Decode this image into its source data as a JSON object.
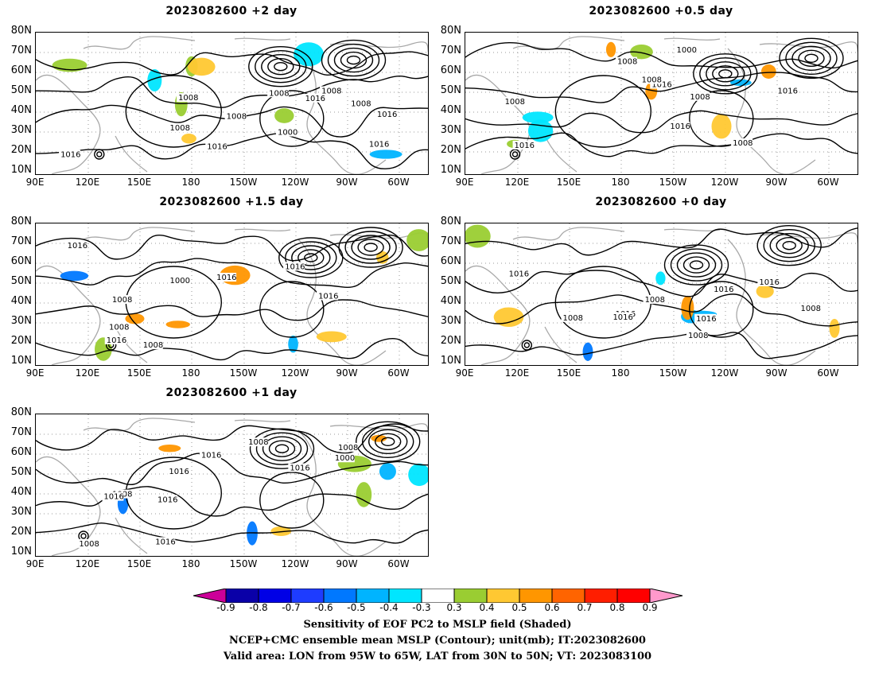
{
  "panels": [
    {
      "id": "p2",
      "title": "2023082600 +2 day",
      "labels": [
        "1016",
        "1008",
        "1016",
        "1008",
        "1000",
        "1008",
        "1016",
        "1008",
        "1016",
        "1008",
        "1008",
        "1016"
      ]
    },
    {
      "id": "p05",
      "title": "2023082600 +0.5 day",
      "labels": [
        "1016",
        "1008",
        "1016",
        "1008",
        "1000",
        "1008",
        "1016",
        "1008",
        "1016",
        "1008"
      ]
    },
    {
      "id": "p15",
      "title": "2023082600 +1.5 day",
      "labels": [
        "1008",
        "1016",
        "1008",
        "1016",
        "1016",
        "1000",
        "1016",
        "1016",
        "1008"
      ]
    },
    {
      "id": "p0",
      "title": "2023082600 +0 day",
      "labels": [
        "1016",
        "1008",
        "1016",
        "1008",
        "1016",
        "1016",
        "1008",
        "1016",
        "1008",
        "1016"
      ]
    },
    {
      "id": "p1",
      "title": "2023082600 +1 day",
      "labels": [
        "1008",
        "1016",
        "1016",
        "1008",
        "1016",
        "1000",
        "1016",
        "1008",
        "1016",
        "1016",
        "1008"
      ]
    }
  ],
  "axes": {
    "lat_labels": [
      "80N",
      "70N",
      "60N",
      "50N",
      "40N",
      "30N",
      "20N",
      "10N"
    ],
    "lon_labels": [
      "90E",
      "120E",
      "150E",
      "180",
      "150W",
      "120W",
      "90W",
      "60W"
    ]
  },
  "colorbar": {
    "ticks": [
      "-0.9",
      "-0.8",
      "-0.7",
      "-0.6",
      "-0.5",
      "-0.4",
      "-0.3",
      "0.3",
      "0.4",
      "0.5",
      "0.6",
      "0.7",
      "0.8",
      "0.9"
    ],
    "colors": [
      "#cc0099",
      "#0a00a8",
      "#0000e6",
      "#1e3cff",
      "#0078ff",
      "#00b4ff",
      "#00e6ff",
      "#ffffff",
      "#9acd32",
      "#ffc832",
      "#ff9600",
      "#ff6400",
      "#ff1e00",
      "#ff0000",
      "#ff99cc"
    ]
  },
  "caption": {
    "line1": "Sensitivity of EOF PC2 to MSLP field (Shaded)",
    "line2": "NCEP+CMC ensemble mean MSLP (Contour); unit(mb); IT:2023082600",
    "line3": "Valid area: LON from 95W to 65W, LAT from 30N to 50N; VT: 2023083100"
  }
}
